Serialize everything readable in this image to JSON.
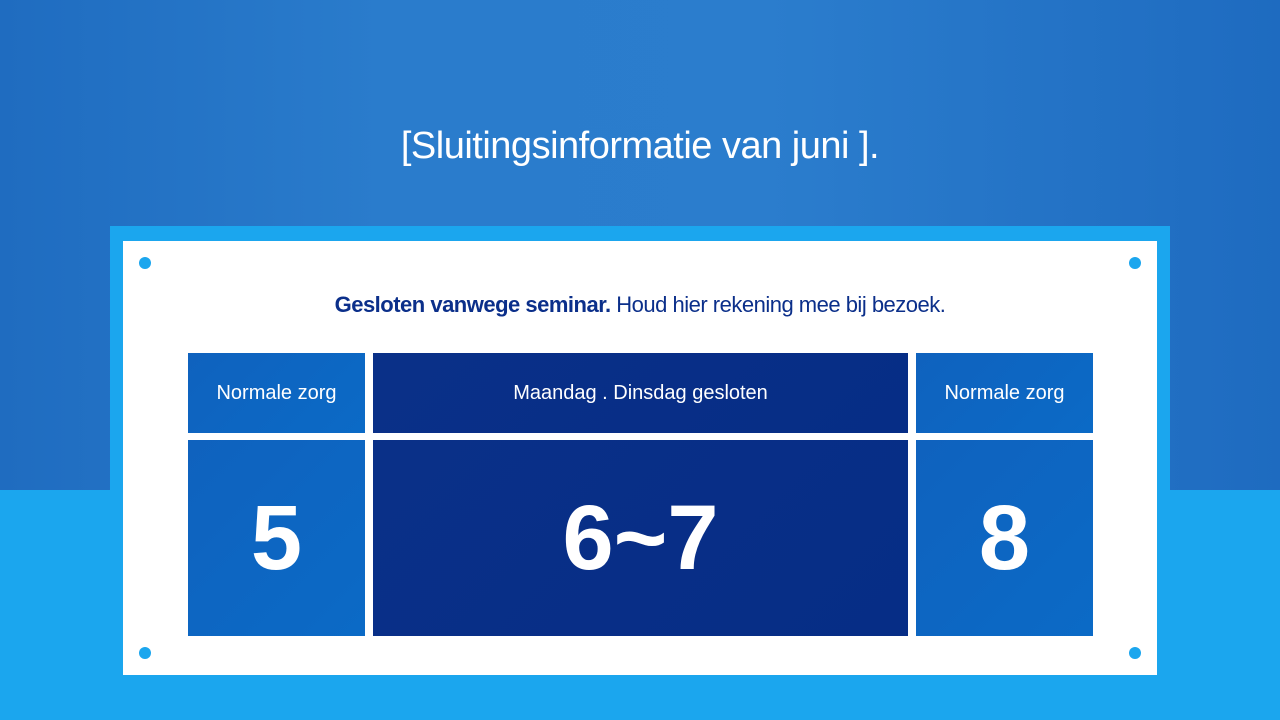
{
  "title": "[Sluitingsinformatie van juni ].",
  "notice": {
    "bold": "Gesloten vanwege seminar.",
    "rest": " Houd hier rekening mee bij bezoek."
  },
  "columns": [
    {
      "header": "Normale zorg",
      "day": "5",
      "status": "open"
    },
    {
      "header": "Maandag . Dinsdag gesloten",
      "day": "6~7",
      "status": "closed"
    },
    {
      "header": "Normale zorg",
      "day": "8",
      "status": "open"
    }
  ],
  "colors": {
    "open": "#0f62be",
    "closed": "#0a3088",
    "accent": "#1ba6ee",
    "text": "#0b2f8a"
  }
}
